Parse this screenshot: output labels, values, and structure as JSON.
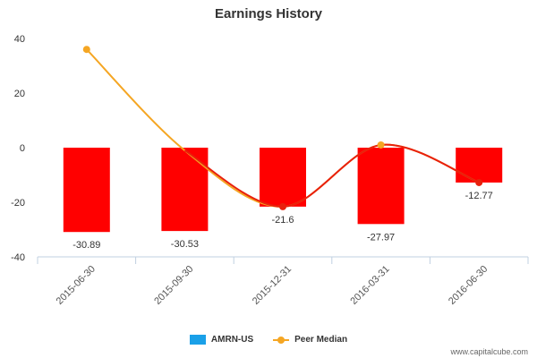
{
  "chart_data": {
    "type": "bar",
    "title": "Earnings History",
    "categories": [
      "2015-06-30",
      "2015-09-30",
      "2015-12-31",
      "2016-03-31",
      "2016-06-30"
    ],
    "series": [
      {
        "name": "AMRN-US",
        "kind": "bar",
        "values": [
          -30.89,
          -30.53,
          -21.6,
          -27.97,
          -12.77
        ],
        "data_labels": [
          "-30.89",
          "-30.53",
          "-21.6",
          "-27.97",
          "-12.77"
        ],
        "legend_color": "#1aa0e8",
        "bar_color": "#ff0000",
        "trend_color": "#e8200c"
      },
      {
        "name": "Peer Median",
        "kind": "line",
        "values": [
          36,
          -1,
          -21.6,
          1,
          -12.77
        ],
        "color": "#f5a623"
      }
    ],
    "ylim": [
      -40,
      40
    ],
    "yticks": [
      -40,
      -20,
      0,
      20,
      40
    ],
    "ytick_labels": [
      "-40",
      "-20",
      "0",
      "20",
      "40"
    ],
    "xlabel": "",
    "ylabel": "",
    "legend": "bottom-center"
  },
  "watermark": "www.capitalcube.com"
}
